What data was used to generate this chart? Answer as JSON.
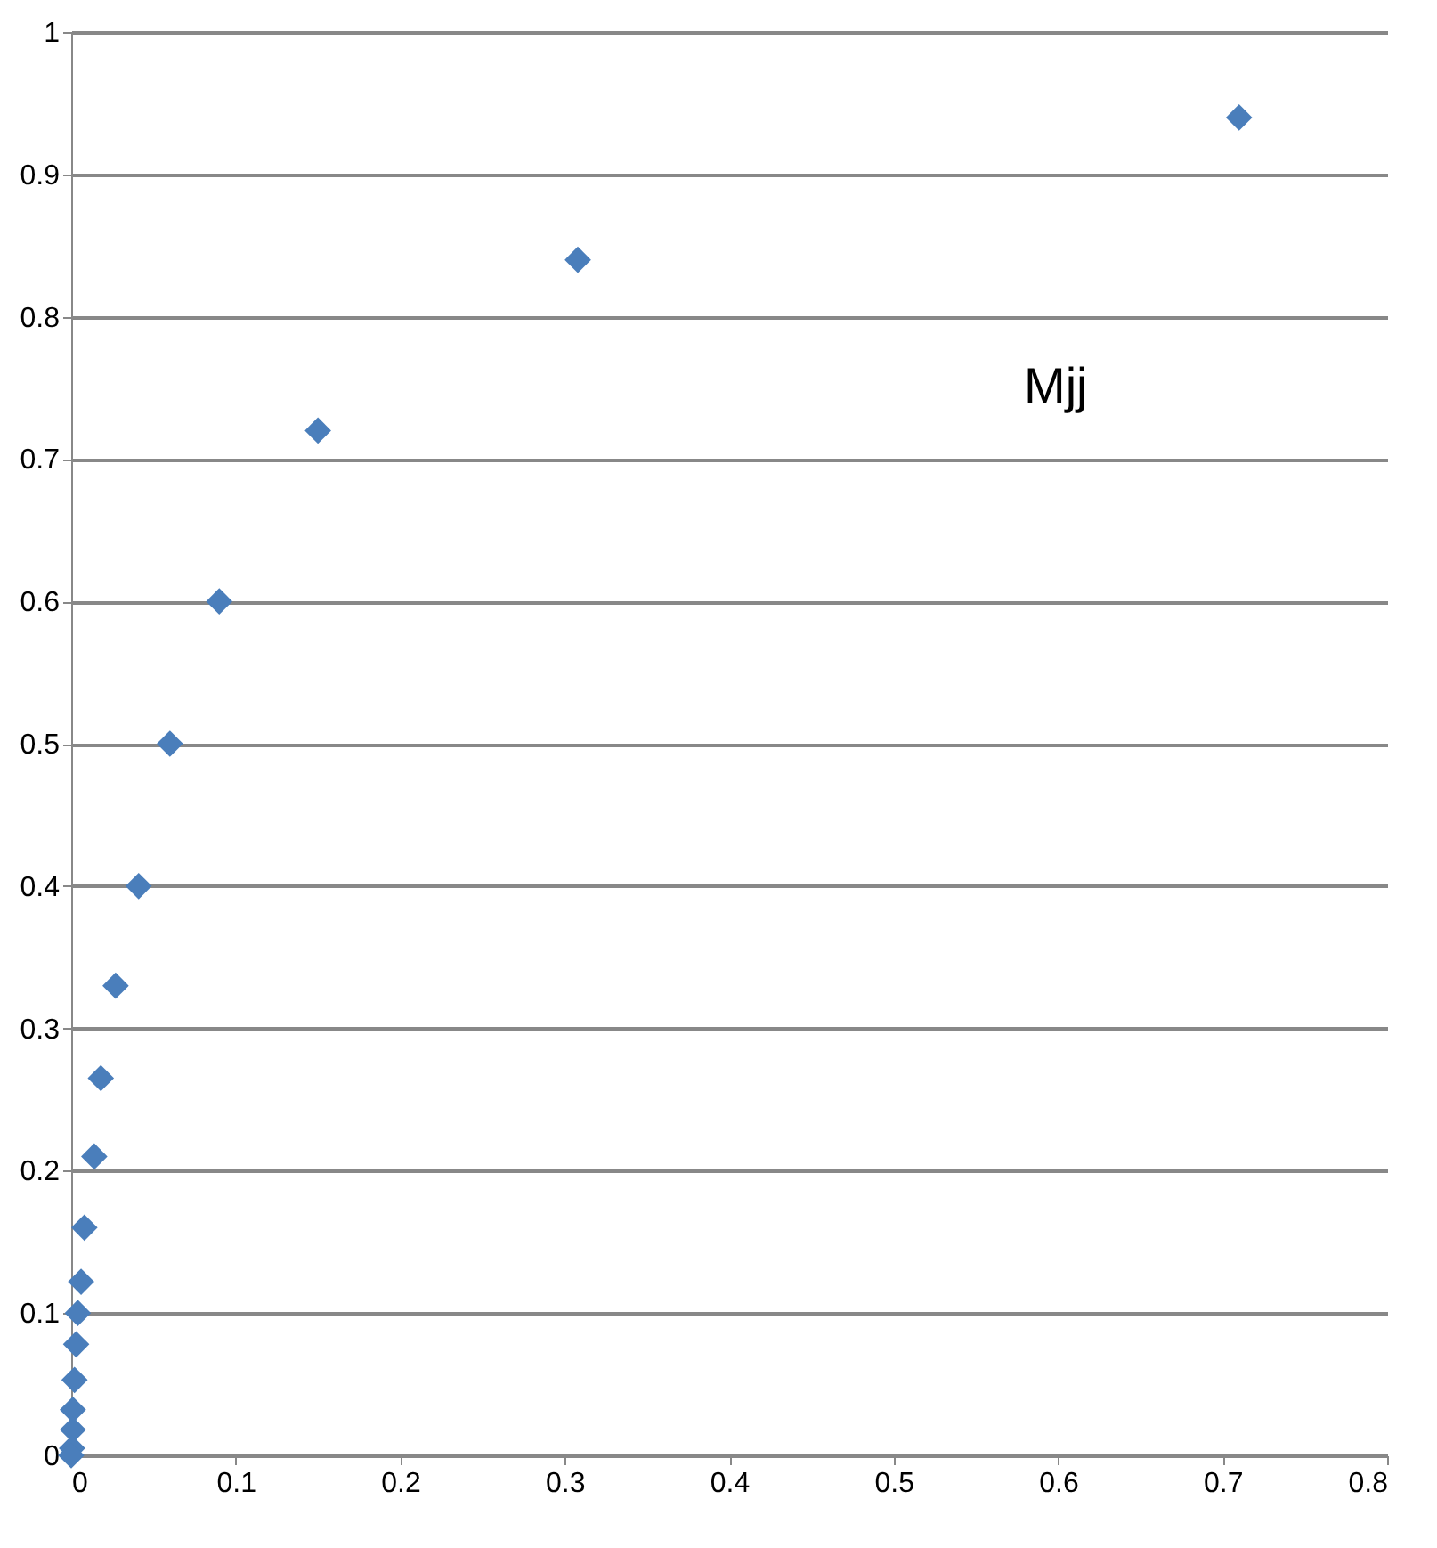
{
  "chart_data": {
    "type": "scatter",
    "x": [
      0.71,
      0.308,
      0.15,
      0.09,
      0.06,
      0.041,
      0.027,
      0.018,
      0.014,
      0.008,
      0.006,
      0.004,
      0.003,
      0.002,
      0.001,
      0.001,
      0.0005,
      0
    ],
    "series": [
      {
        "color": "#4a7ebb",
        "values": [
          0.94,
          0.84,
          0.72,
          0.6,
          0.5,
          0.4,
          0.33,
          0.265,
          0.21,
          0.16,
          0.122,
          0.1,
          0.078,
          0.053,
          0.032,
          0.018,
          0.005,
          0
        ]
      }
    ],
    "xlim": [
      0,
      0.8
    ],
    "xticks": [
      0,
      0.1,
      0.2,
      0.3,
      0.4,
      0.5,
      0.6,
      0.7,
      0.8
    ],
    "ylim": [
      0,
      1
    ],
    "yticks": [
      0,
      0.1,
      0.2,
      0.3,
      0.4,
      0.5,
      0.6,
      0.7,
      0.8,
      0.9,
      1
    ],
    "grid": "y",
    "marker": "diamond",
    "annotations": [
      "Mjj"
    ]
  }
}
